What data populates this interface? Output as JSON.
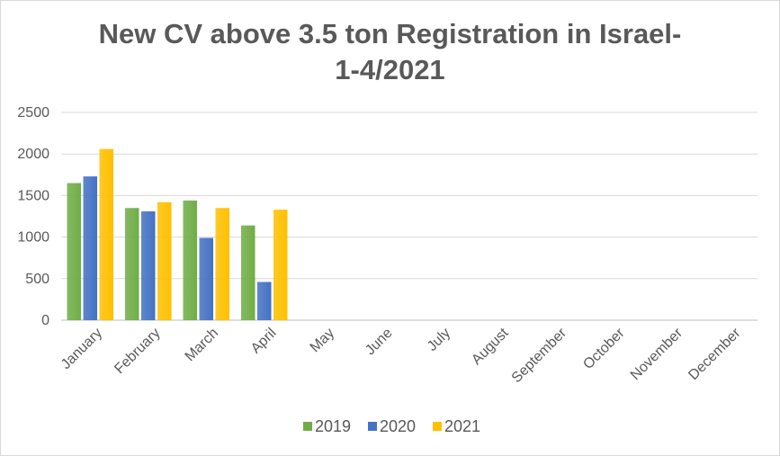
{
  "chart_data": {
    "type": "bar",
    "title_line1": "New CV above 3.5 ton Registration in Israel-",
    "title_line2": "1-4/2021",
    "categories": [
      "January",
      "February",
      "March",
      "April",
      "May",
      "June",
      "July",
      "August",
      "September",
      "October",
      "November",
      "December"
    ],
    "series": [
      {
        "name": "2019",
        "color": "#70ad47",
        "values": [
          1650,
          1350,
          1440,
          1140,
          null,
          null,
          null,
          null,
          null,
          null,
          null,
          null
        ]
      },
      {
        "name": "2020",
        "color": "#4472c4",
        "values": [
          1730,
          1310,
          990,
          460,
          null,
          null,
          null,
          null,
          null,
          null,
          null,
          null
        ]
      },
      {
        "name": "2021",
        "color": "#ffc000",
        "values": [
          2060,
          1420,
          1350,
          1330,
          null,
          null,
          null,
          null,
          null,
          null,
          null,
          null
        ]
      }
    ],
    "y_ticks": [
      "0",
      "500",
      "1000",
      "1500",
      "2000",
      "2500"
    ],
    "ylim": [
      0,
      2500
    ],
    "grid": true,
    "legend_position": "bottom"
  }
}
